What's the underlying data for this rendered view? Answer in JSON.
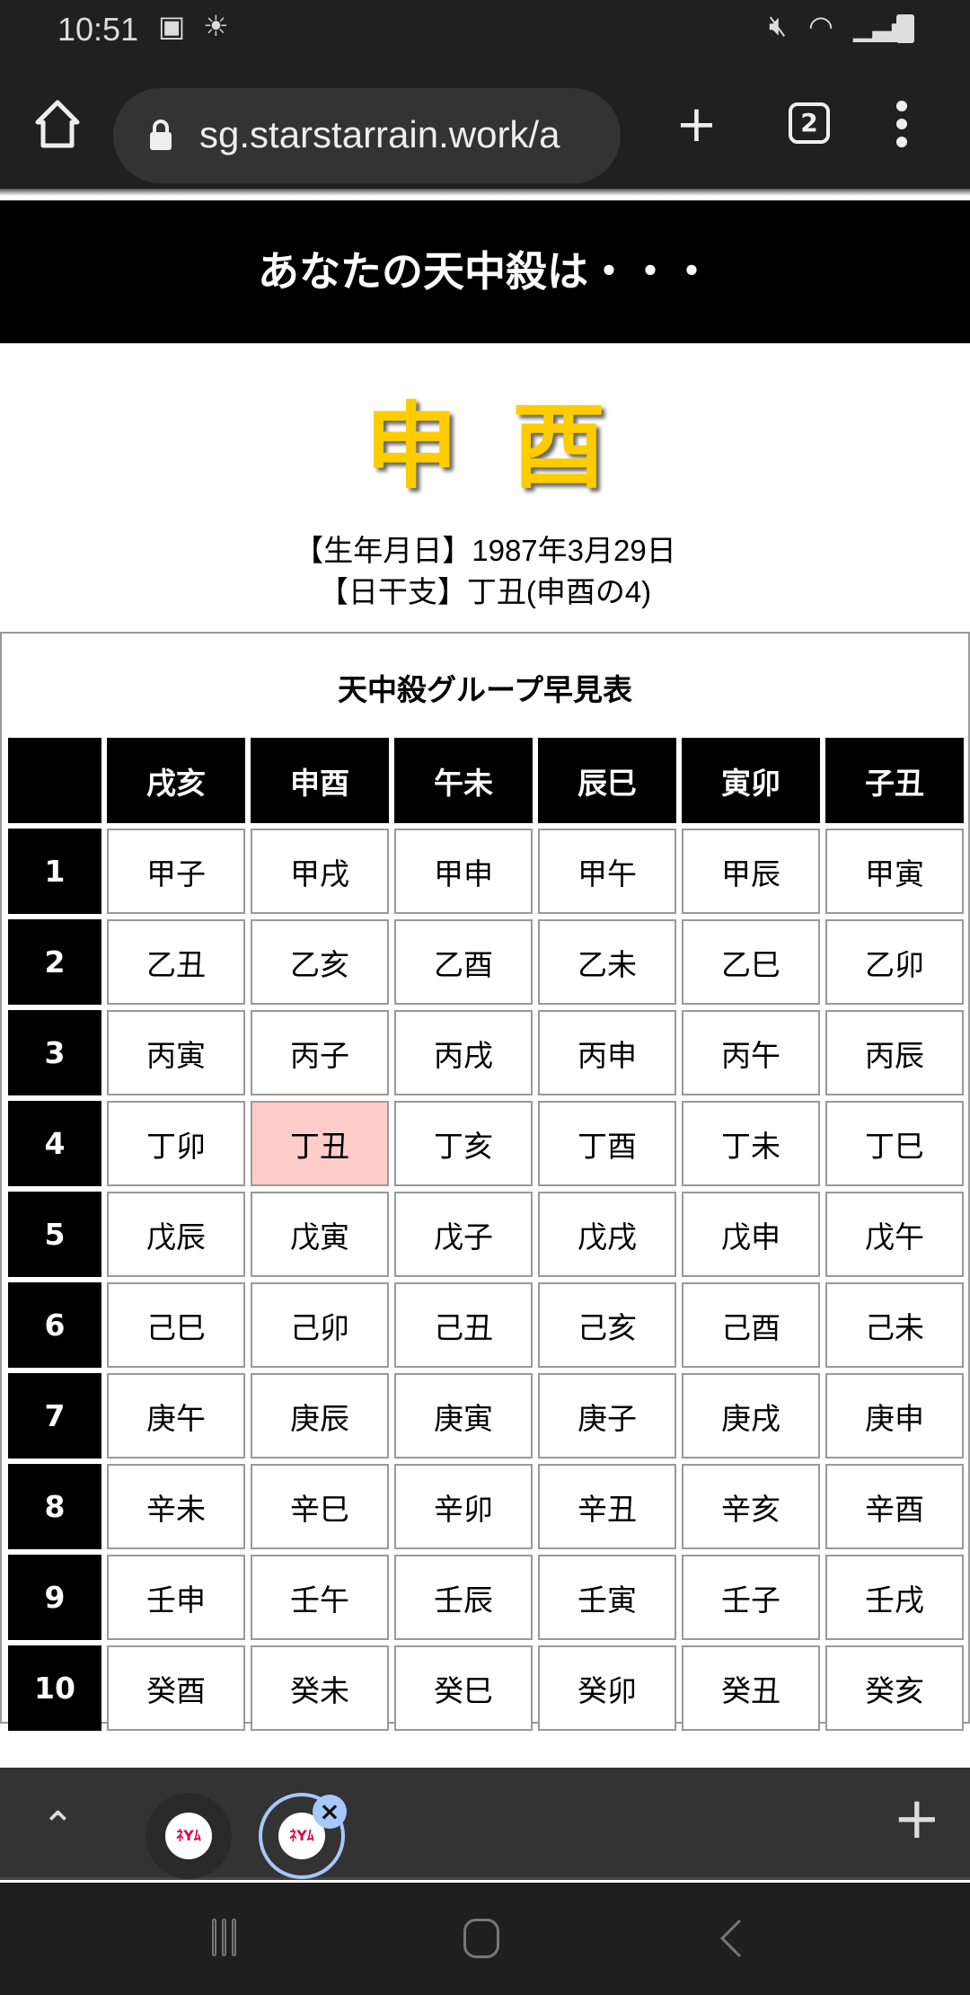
{
  "status_bar": {
    "time": "10:51",
    "left_icons": [
      "gallery-icon",
      "weather-icon"
    ],
    "right_icons": [
      "mute-icon",
      "wifi-icon",
      "signal-icon",
      "battery-icon"
    ]
  },
  "browser": {
    "url": "sg.starstarrain.work/a",
    "tab_count": "2",
    "new_tab_label": "+",
    "menu_icon": "more-vert-icon"
  },
  "page": {
    "banner": "あなたの天中殺は・・・",
    "result": "申酉",
    "birthdate_line": "【生年月日】1987年3月29日",
    "day_stem_line": "【日干支】丁丑(申酉の4)",
    "highlight_color": "#ffcccc",
    "result_color": "#ffcc00",
    "table": {
      "caption": "天中殺グループ早見表",
      "columns": [
        "",
        "戌亥",
        "申酉",
        "午未",
        "辰巳",
        "寅卯",
        "子丑"
      ],
      "rows": [
        {
          "label": "1",
          "cells": [
            "甲子",
            "甲戌",
            "甲申",
            "甲午",
            "甲辰",
            "甲寅"
          ]
        },
        {
          "label": "2",
          "cells": [
            "乙丑",
            "乙亥",
            "乙酉",
            "乙未",
            "乙巳",
            "乙卯"
          ]
        },
        {
          "label": "3",
          "cells": [
            "丙寅",
            "丙子",
            "丙戌",
            "丙申",
            "丙午",
            "丙辰"
          ]
        },
        {
          "label": "4",
          "cells": [
            "丁卯",
            "丁丑",
            "丁亥",
            "丁酉",
            "丁未",
            "丁巳"
          ]
        },
        {
          "label": "5",
          "cells": [
            "戊辰",
            "戊寅",
            "戊子",
            "戊戌",
            "戊申",
            "戊午"
          ]
        },
        {
          "label": "6",
          "cells": [
            "己巳",
            "己卯",
            "己丑",
            "己亥",
            "己酉",
            "己未"
          ]
        },
        {
          "label": "7",
          "cells": [
            "庚午",
            "庚辰",
            "庚寅",
            "庚子",
            "庚戌",
            "庚申"
          ]
        },
        {
          "label": "8",
          "cells": [
            "辛未",
            "辛巳",
            "辛卯",
            "辛丑",
            "辛亥",
            "辛酉"
          ]
        },
        {
          "label": "9",
          "cells": [
            "壬申",
            "壬午",
            "壬辰",
            "壬寅",
            "壬子",
            "壬戌"
          ]
        },
        {
          "label": "10",
          "cells": [
            "癸酉",
            "癸未",
            "癸巳",
            "癸卯",
            "癸丑",
            "癸亥"
          ]
        }
      ],
      "highlighted": {
        "row": "4",
        "column": "申酉",
        "value": "丁丑"
      }
    }
  },
  "tab_strip": {
    "favicon_text": "ﾈYﾑ",
    "tabs": 2,
    "active_tab": 2
  }
}
